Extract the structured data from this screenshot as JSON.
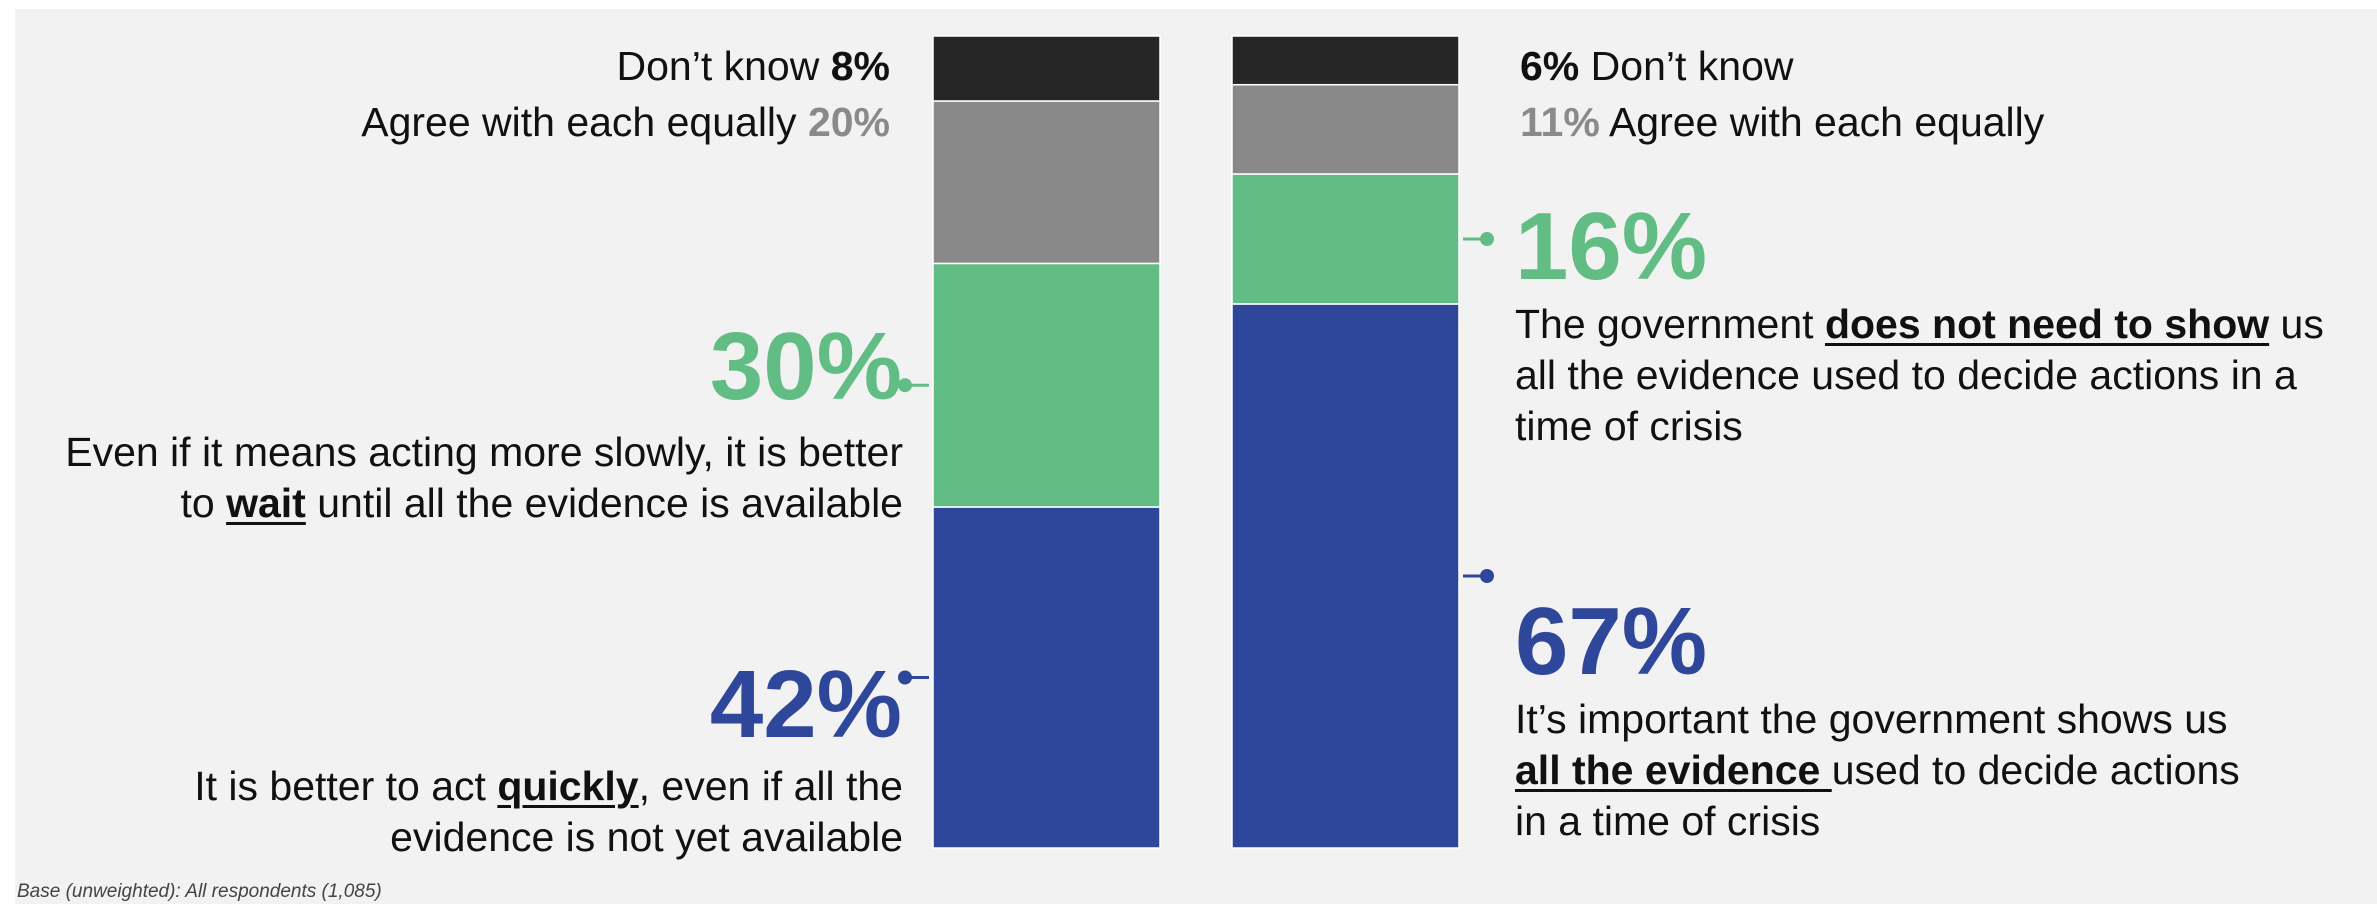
{
  "colors": {
    "dont_know": "#262626",
    "equal": "#898989",
    "green": "#62bd85",
    "blue": "#2e479b",
    "background": "#f2f2f2"
  },
  "chart_data": {
    "type": "bar",
    "stacked": true,
    "ylim": [
      0,
      100
    ],
    "bars": [
      {
        "segments": [
          {
            "key": "blue",
            "value": 42
          },
          {
            "key": "green",
            "value": 30
          },
          {
            "key": "equal",
            "value": 20
          },
          {
            "key": "dont_know",
            "value": 8
          }
        ]
      },
      {
        "segments": [
          {
            "key": "blue",
            "value": 67
          },
          {
            "key": "green",
            "value": 16
          },
          {
            "key": "equal",
            "value": 11
          },
          {
            "key": "dont_know",
            "value": 6
          }
        ]
      }
    ]
  },
  "left": {
    "dont_know": {
      "text": "Don’t know ",
      "pct": "8%"
    },
    "equal": {
      "text": "Agree with each equally ",
      "pct": "20%"
    },
    "green": {
      "pct": "30%",
      "line1": "Even if it means acting more slowly, it is better",
      "pre": "to ",
      "em": "wait",
      "post": " until all the evidence is available"
    },
    "blue": {
      "pct": "42%",
      "pre": "It is better to act ",
      "em": "quickly",
      "post": ", even if all the",
      "line2": "evidence is not yet available"
    }
  },
  "right": {
    "dont_know": {
      "pct": "6%",
      "text": " Don’t know"
    },
    "equal": {
      "pct": "11%",
      "text": " Agree with each equally"
    },
    "green": {
      "pct": "16%",
      "pre": "The government ",
      "em": "does not need to show",
      "post": " us",
      "line2": "all the evidence used to decide actions in a",
      "line3": "time of crisis"
    },
    "blue": {
      "pct": "67%",
      "line1": "It’s important the government shows us",
      "em": "all the evidence ",
      "post": "used to decide actions",
      "line3": "in a time of crisis"
    }
  },
  "footnote": "Base (unweighted): All respondents (1,085)"
}
